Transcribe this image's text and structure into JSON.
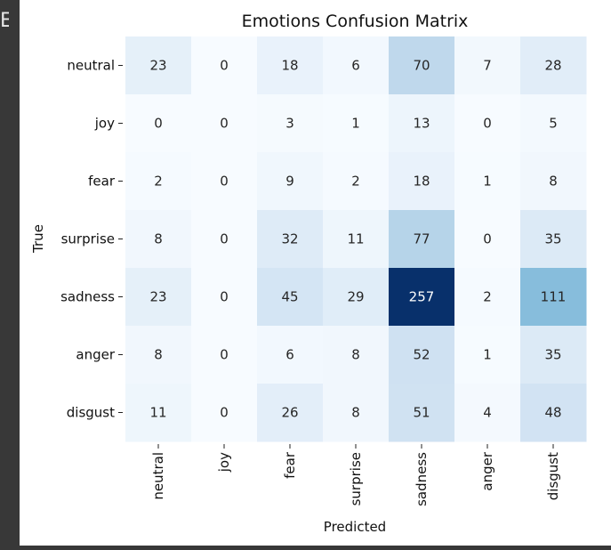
{
  "edge_glyph": "E",
  "chart_data": {
    "type": "heatmap",
    "title": "Emotions Confusion Matrix",
    "xlabel": "Predicted",
    "ylabel": "True",
    "row_labels": [
      "neutral",
      "joy",
      "fear",
      "surprise",
      "sadness",
      "anger",
      "disgust"
    ],
    "col_labels": [
      "neutral",
      "joy",
      "fear",
      "surprise",
      "sadness",
      "anger",
      "disgust"
    ],
    "values": [
      [
        23,
        0,
        18,
        6,
        70,
        7,
        28
      ],
      [
        0,
        0,
        3,
        1,
        13,
        0,
        5
      ],
      [
        2,
        0,
        9,
        2,
        18,
        1,
        8
      ],
      [
        8,
        0,
        32,
        11,
        77,
        0,
        35
      ],
      [
        23,
        0,
        45,
        29,
        257,
        2,
        111
      ],
      [
        8,
        0,
        6,
        8,
        52,
        1,
        35
      ],
      [
        11,
        0,
        26,
        8,
        51,
        4,
        48
      ]
    ],
    "vmin": 0,
    "vmax": 257,
    "colormap": "Blues",
    "colorbar": false,
    "grid": false
  }
}
